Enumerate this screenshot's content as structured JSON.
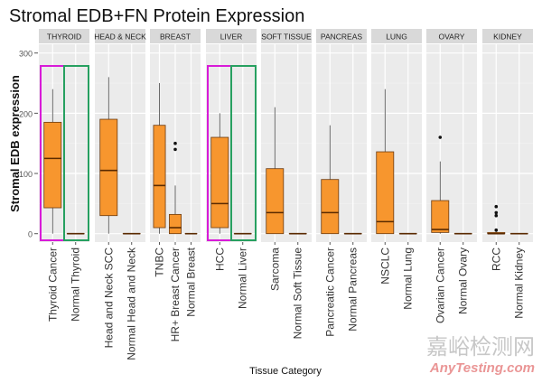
{
  "chart_data": {
    "type": "boxplot",
    "title": "Stromal EDB+FN Protein Expression",
    "xlabel": "Tissue Category",
    "ylabel": "Stromal EDB expression",
    "ylim": [
      -10,
      315
    ],
    "yticks": [
      0,
      100,
      200,
      300
    ],
    "grid": true,
    "fill_color": "#f7962e",
    "highlight_colors": {
      "cancer": "#d81bd8",
      "normal": "#27a060"
    },
    "panels": [
      {
        "name": "THYROID",
        "highlight": true,
        "categories": [
          {
            "label": "Thyroid Cancer",
            "min": 0,
            "q1": 43,
            "median": 125,
            "q3": 185,
            "max": 240,
            "outliers": []
          },
          {
            "label": "Normal Thyroid",
            "min": 0,
            "q1": 0,
            "median": 0,
            "q3": 0,
            "max": 0,
            "outliers": []
          }
        ]
      },
      {
        "name": "HEAD & NECK",
        "highlight": false,
        "categories": [
          {
            "label": "Head and Neck SCC",
            "min": 0,
            "q1": 30,
            "median": 105,
            "q3": 190,
            "max": 260,
            "outliers": []
          },
          {
            "label": "Normal Head and Neck",
            "min": 0,
            "q1": 0,
            "median": 0,
            "q3": 0,
            "max": 0,
            "outliers": []
          }
        ]
      },
      {
        "name": "BREAST",
        "highlight": false,
        "categories": [
          {
            "label": "TNBC",
            "min": 0,
            "q1": 10,
            "median": 80,
            "q3": 180,
            "max": 250,
            "outliers": []
          },
          {
            "label": "HR+ Breast Cancer",
            "min": 0,
            "q1": 0,
            "median": 10,
            "q3": 32,
            "max": 80,
            "outliers": [
              140,
              150
            ]
          },
          {
            "label": "Normal Breast",
            "min": 0,
            "q1": 0,
            "median": 0,
            "q3": 0,
            "max": 0,
            "outliers": []
          }
        ]
      },
      {
        "name": "LIVER",
        "highlight": true,
        "categories": [
          {
            "label": "HCC",
            "min": 0,
            "q1": 10,
            "median": 50,
            "q3": 160,
            "max": 200,
            "outliers": []
          },
          {
            "label": "Normal Liver",
            "min": 0,
            "q1": 0,
            "median": 0,
            "q3": 0,
            "max": 0,
            "outliers": []
          }
        ]
      },
      {
        "name": "SOFT TISSUE",
        "highlight": false,
        "categories": [
          {
            "label": "Sarcoma",
            "min": 0,
            "q1": 0,
            "median": 35,
            "q3": 108,
            "max": 210,
            "outliers": []
          },
          {
            "label": "Normal Soft Tissue",
            "min": 0,
            "q1": 0,
            "median": 0,
            "q3": 0,
            "max": 0,
            "outliers": []
          }
        ]
      },
      {
        "name": "PANCREAS",
        "highlight": false,
        "categories": [
          {
            "label": "Pancreatic Cancer",
            "min": 0,
            "q1": 0,
            "median": 35,
            "q3": 90,
            "max": 180,
            "outliers": []
          },
          {
            "label": "Normal Pancreas",
            "min": 0,
            "q1": 0,
            "median": 0,
            "q3": 0,
            "max": 0,
            "outliers": []
          }
        ]
      },
      {
        "name": "LUNG",
        "highlight": false,
        "categories": [
          {
            "label": "NSCLC",
            "min": 0,
            "q1": 0,
            "median": 20,
            "q3": 136,
            "max": 240,
            "outliers": []
          },
          {
            "label": "Normal Lung",
            "min": 0,
            "q1": 0,
            "median": 0,
            "q3": 0,
            "max": 0,
            "outliers": []
          }
        ]
      },
      {
        "name": "OVARY",
        "highlight": false,
        "categories": [
          {
            "label": "Ovarian Cancer",
            "min": 0,
            "q1": 2,
            "median": 7,
            "q3": 55,
            "max": 120,
            "outliers": [
              160
            ]
          },
          {
            "label": "Normal Ovary",
            "min": 0,
            "q1": 0,
            "median": 0,
            "q3": 0,
            "max": 0,
            "outliers": []
          }
        ]
      },
      {
        "name": "KIDNEY",
        "highlight": false,
        "categories": [
          {
            "label": "RCC",
            "min": 0,
            "q1": 0,
            "median": 0,
            "q3": 2,
            "max": 4,
            "outliers": [
              6,
              30,
              35,
              45
            ]
          },
          {
            "label": "Normal Kidney",
            "min": 0,
            "q1": 0,
            "median": 0,
            "q3": 0,
            "max": 0,
            "outliers": []
          }
        ]
      }
    ]
  },
  "watermark": {
    "cn": "嘉峪检测网",
    "en": "AnyTesting.com"
  }
}
